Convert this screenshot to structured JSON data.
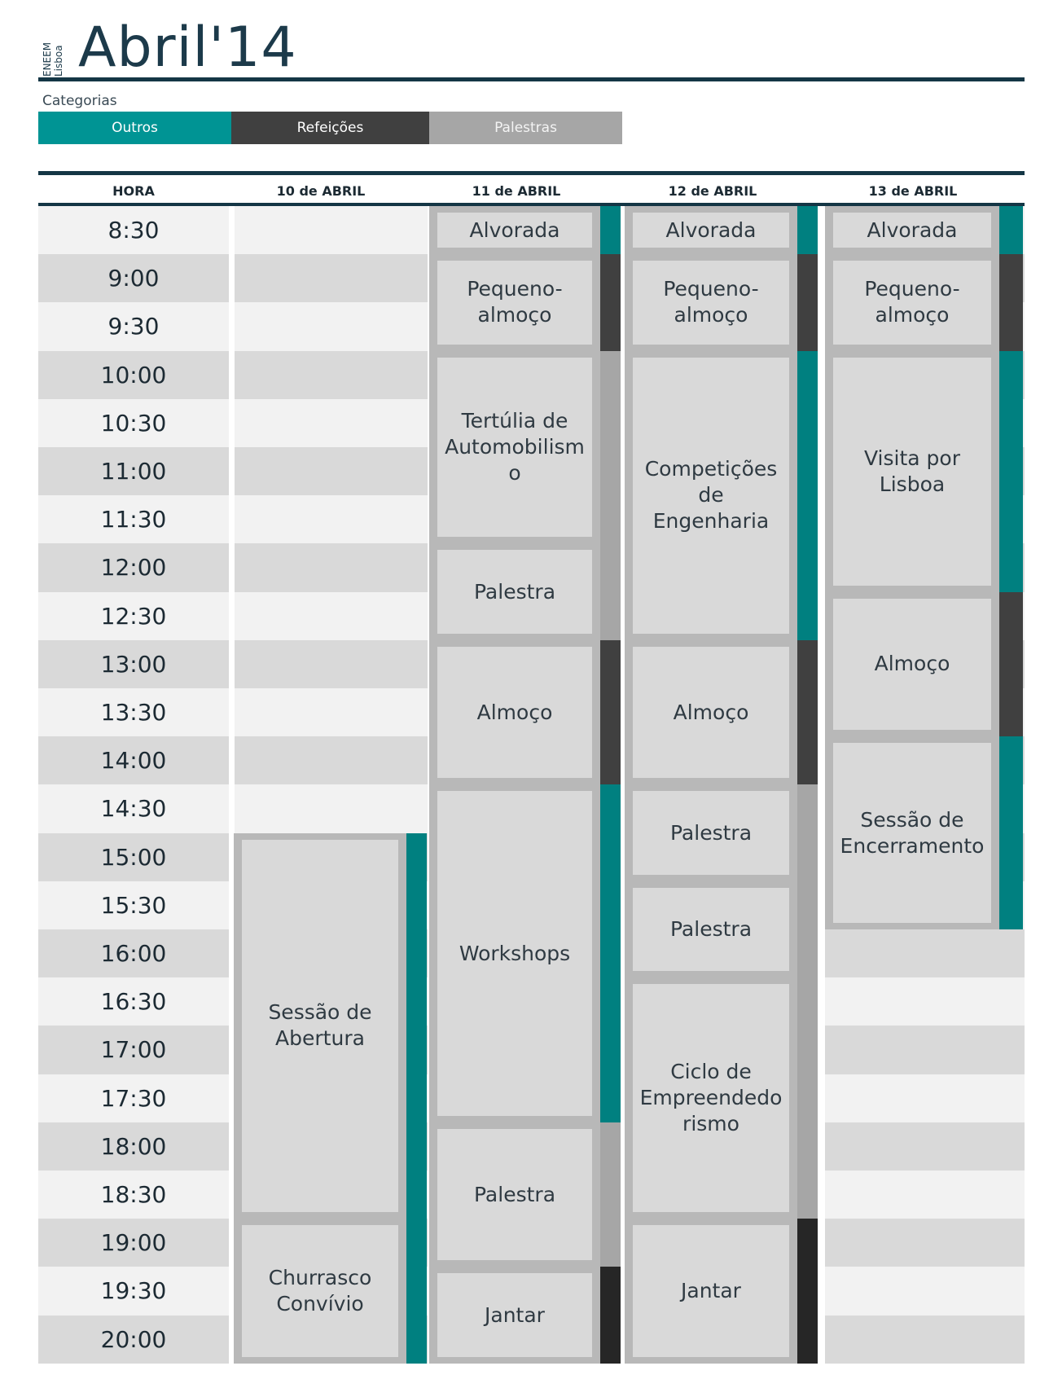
{
  "header": {
    "org": "ENEEM",
    "city": "Lisboa",
    "title": "Abril'14"
  },
  "categories": {
    "label": "Categorias",
    "items": [
      {
        "name": "Outros",
        "color": "#009494"
      },
      {
        "name": "Refeições",
        "color": "#404040"
      },
      {
        "name": "Palestras",
        "color": "#a6a6a6"
      }
    ]
  },
  "columns": [
    "HORA",
    "10 de ABRIL",
    "11 de ABRIL",
    "12 de ABRIL",
    "13 de ABRIL"
  ],
  "times": [
    "8:30",
    "9:00",
    "9:30",
    "10:00",
    "10:30",
    "11:00",
    "11:30",
    "12:00",
    "12:30",
    "13:00",
    "13:30",
    "14:00",
    "14:30",
    "15:00",
    "15:30",
    "16:00",
    "16:30",
    "17:00",
    "17:30",
    "18:00",
    "18:30",
    "19:00",
    "19:30",
    "20:00"
  ],
  "days": [
    {
      "events": [
        {
          "title": "Sessão de\nAbertura",
          "start": 13,
          "end": 21,
          "category": "Outros"
        },
        {
          "title": "Churrasco\nConvívio",
          "start": 21,
          "end": 24,
          "category": "Outros"
        }
      ]
    },
    {
      "events": [
        {
          "title": "Alvorada",
          "start": 0,
          "end": 1,
          "category": "Outros"
        },
        {
          "title": "Pequeno-\nalmoço",
          "start": 1,
          "end": 3,
          "category": "Refeições"
        },
        {
          "title": "Tertúlia de\nAutomobilism\no",
          "start": 3,
          "end": 7,
          "category": "Palestras"
        },
        {
          "title": "Palestra",
          "start": 7,
          "end": 9,
          "category": "Palestras"
        },
        {
          "title": "Almoço",
          "start": 9,
          "end": 12,
          "category": "Refeições"
        },
        {
          "title": "Workshops",
          "start": 12,
          "end": 19,
          "category": "Outros"
        },
        {
          "title": "Palestra",
          "start": 19,
          "end": 22,
          "category": "Palestras"
        },
        {
          "title": "Jantar",
          "start": 22,
          "end": 24,
          "category": "Jantar"
        }
      ]
    },
    {
      "events": [
        {
          "title": "Alvorada",
          "start": 0,
          "end": 1,
          "category": "Outros"
        },
        {
          "title": "Pequeno-\nalmoço",
          "start": 1,
          "end": 3,
          "category": "Refeições"
        },
        {
          "title": "Competições\nde Engenharia",
          "start": 3,
          "end": 9,
          "category": "Outros"
        },
        {
          "title": "Almoço",
          "start": 9,
          "end": 12,
          "category": "Refeições"
        },
        {
          "title": "Palestra",
          "start": 12,
          "end": 14,
          "category": "Palestras"
        },
        {
          "title": "Palestra",
          "start": 14,
          "end": 16,
          "category": "Palestras"
        },
        {
          "title": "Ciclo de\nEmpreendedo\nrismo",
          "start": 16,
          "end": 21,
          "category": "Palestras"
        },
        {
          "title": "Jantar",
          "start": 21,
          "end": 24,
          "category": "Jantar"
        }
      ]
    },
    {
      "events": [
        {
          "title": "Alvorada",
          "start": 0,
          "end": 1,
          "category": "Outros"
        },
        {
          "title": "Pequeno-\nalmoço",
          "start": 1,
          "end": 3,
          "category": "Refeições"
        },
        {
          "title": "Visita por\nLisboa",
          "start": 3,
          "end": 8,
          "category": "Outros"
        },
        {
          "title": "Almoço",
          "start": 8,
          "end": 11,
          "category": "Refeições"
        },
        {
          "title": "Sessão de\nEncerramento",
          "start": 11,
          "end": 15,
          "category": "Outros"
        }
      ]
    }
  ],
  "bar_colors": {
    "Outros": "#008080",
    "Refeições": "#404040",
    "Palestras": "#a6a6a6",
    "Jantar": "#262626"
  },
  "row_colors": {
    "light": "#f2f2f2",
    "dark": "#d9d9d9"
  }
}
